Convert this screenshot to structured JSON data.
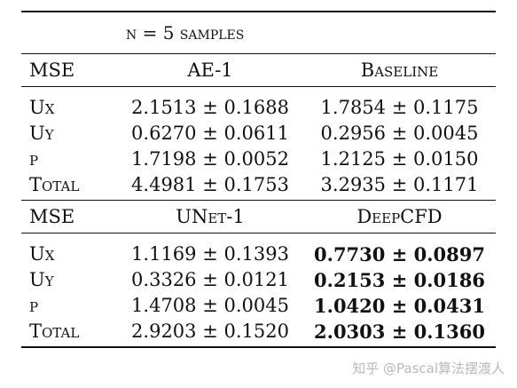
{
  "caption": "n = 5 samples",
  "sections": [
    {
      "metric_label": "MSE",
      "model_a": "AE-1",
      "model_b": "Baseline",
      "rows": [
        {
          "label": "Ux",
          "a": "2.1513 ± 0.1688",
          "b": "1.7854 ± 0.1175"
        },
        {
          "label": "Uy",
          "a": "0.6270 ± 0.0611",
          "b": "0.2956 ± 0.0045"
        },
        {
          "label": "p",
          "a": "1.7198 ± 0.0052",
          "b": "1.2125 ± 0.0150"
        },
        {
          "label": "Total",
          "a": "4.4981 ± 0.1753",
          "b": "3.2935 ± 0.1171"
        }
      ]
    },
    {
      "metric_label": "MSE",
      "model_a": "UNet-1",
      "model_b": "DeepCFD",
      "rows": [
        {
          "label": "Ux",
          "a": "1.1169 ± 0.1393",
          "b": "0.7730 ± 0.0897"
        },
        {
          "label": "Uy",
          "a": "0.3326 ± 0.0121",
          "b": "0.2153 ± 0.0186"
        },
        {
          "label": "p",
          "a": "1.4708 ± 0.0045",
          "b": "1.0420 ± 0.0431"
        },
        {
          "label": "Total",
          "a": "2.9203 ± 0.1520",
          "b": "2.0303 ± 0.1360"
        }
      ]
    }
  ],
  "watermark": "知乎 @Pascal算法摆渡人"
}
